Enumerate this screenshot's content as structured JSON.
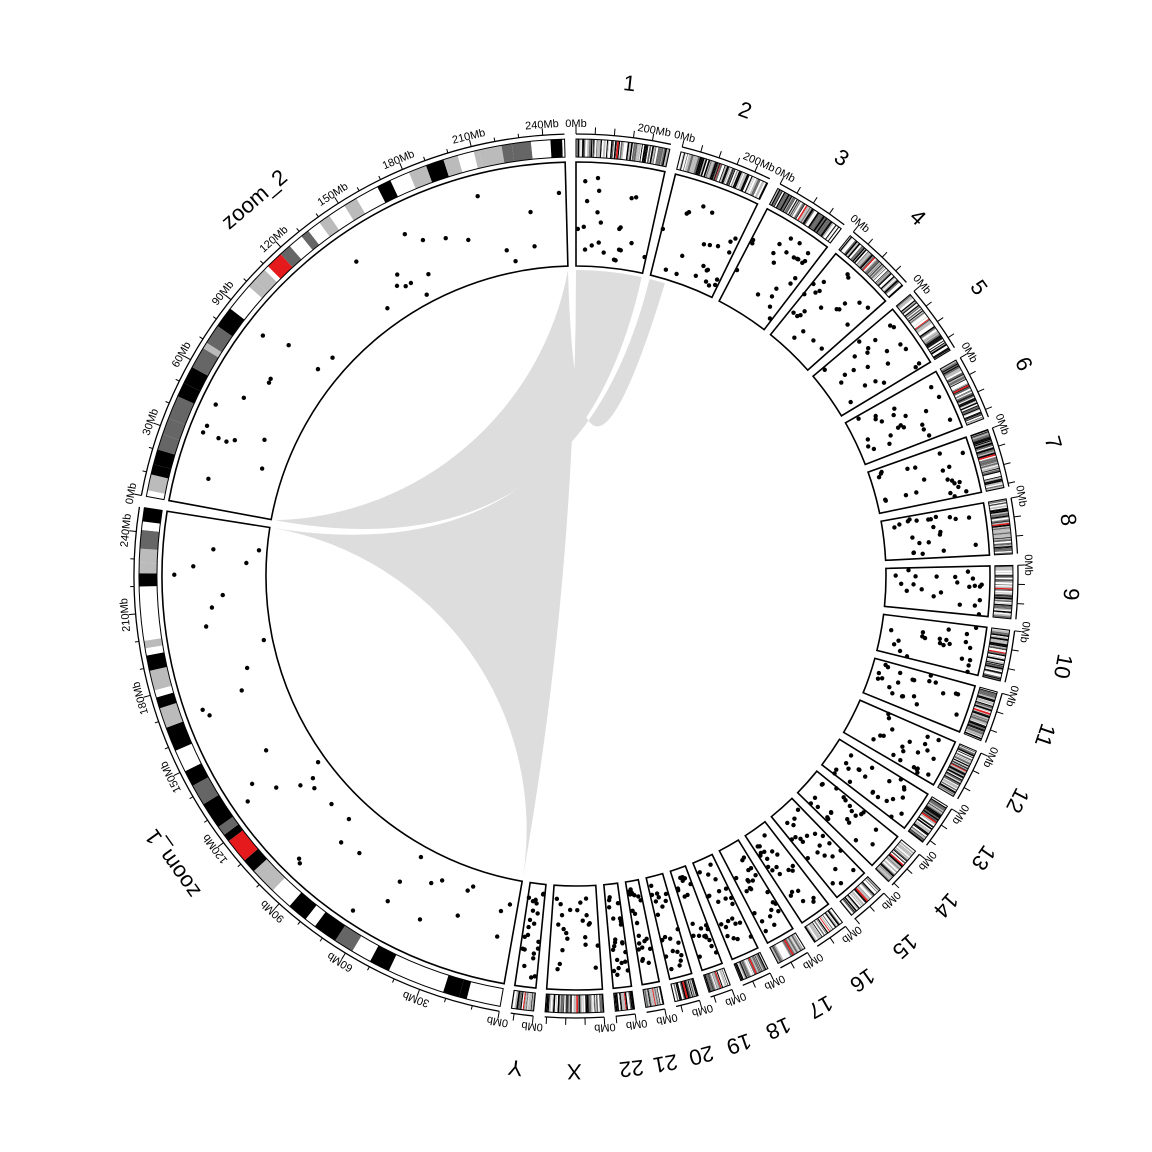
{
  "colors": {
    "background": "#ffffff",
    "line": "#000000",
    "link": "#dddddd",
    "band_dark": "#000000",
    "band_mid": "#666666",
    "band_light": "#bbbbbb",
    "band_none": "#ffffff",
    "centromere": "#e41a1c"
  },
  "chart_data": {
    "type": "circos",
    "tracks": [
      "axis",
      "ideogram",
      "points"
    ],
    "sectors": [
      {
        "name": "1",
        "len": 249,
        "labels": [
          "0Mb",
          "200Mb"
        ],
        "ticks_every": 50,
        "density": 22
      },
      {
        "name": "2",
        "len": 243,
        "labels": [
          "0Mb",
          "200Mb"
        ],
        "ticks_every": 50,
        "density": 22
      },
      {
        "name": "3",
        "len": 198,
        "labels": [
          "0Mb"
        ],
        "ticks_every": 50,
        "density": 22
      },
      {
        "name": "4",
        "len": 191,
        "labels": [
          "0Mb"
        ],
        "ticks_every": 50,
        "density": 22
      },
      {
        "name": "5",
        "len": 181,
        "labels": [
          "0Mb"
        ],
        "ticks_every": 50,
        "density": 22
      },
      {
        "name": "6",
        "len": 171,
        "labels": [
          "0Mb"
        ],
        "ticks_every": 50,
        "density": 22
      },
      {
        "name": "7",
        "len": 159,
        "labels": [
          "0Mb"
        ],
        "ticks_every": 50,
        "density": 22
      },
      {
        "name": "8",
        "len": 146,
        "labels": [
          "0Mb"
        ],
        "ticks_every": 50,
        "density": 22
      },
      {
        "name": "9",
        "len": 141,
        "labels": [
          "0Mb"
        ],
        "ticks_every": 50,
        "density": 22
      },
      {
        "name": "10",
        "len": 136,
        "labels": [
          "0Mb"
        ],
        "ticks_every": 50,
        "density": 22
      },
      {
        "name": "11",
        "len": 135,
        "labels": [
          "0Mb"
        ],
        "ticks_every": 50,
        "density": 22
      },
      {
        "name": "12",
        "len": 134,
        "labels": [
          "0Mb"
        ],
        "ticks_every": 50,
        "density": 22
      },
      {
        "name": "13",
        "len": 115,
        "labels": [
          "0Mb"
        ],
        "ticks_every": 50,
        "density": 22
      },
      {
        "name": "14",
        "len": 107,
        "labels": [
          "0Mb"
        ],
        "ticks_every": 50,
        "density": 22
      },
      {
        "name": "15",
        "len": 102,
        "labels": [
          "0Mb"
        ],
        "ticks_every": 50,
        "density": 22
      },
      {
        "name": "16",
        "len": 90,
        "labels": [
          "0Mb"
        ],
        "ticks_every": 50,
        "density": 22
      },
      {
        "name": "17",
        "len": 81,
        "labels": [
          "0Mb"
        ],
        "ticks_every": 50,
        "density": 22
      },
      {
        "name": "18",
        "len": 78,
        "labels": [
          "0Mb"
        ],
        "ticks_every": 50,
        "density": 22
      },
      {
        "name": "19",
        "len": 59,
        "labels": [
          "0Mb"
        ],
        "ticks_every": 50,
        "density": 22
      },
      {
        "name": "20",
        "len": 63,
        "labels": [
          "0Mb"
        ],
        "ticks_every": 50,
        "density": 22
      },
      {
        "name": "21",
        "len": 48,
        "labels": [
          "0Mb"
        ],
        "ticks_every": 50,
        "density": 22
      },
      {
        "name": "22",
        "len": 51,
        "labels": [
          "0Mb"
        ],
        "ticks_every": 50,
        "density": 22
      },
      {
        "name": "X",
        "len": 155,
        "labels": [
          "0Mb"
        ],
        "ticks_every": 50,
        "density": 22
      },
      {
        "name": "Y",
        "len": 59,
        "labels": [
          "0Mb"
        ],
        "ticks_every": 50,
        "density": 22
      },
      {
        "name": "zoom_1",
        "len": 249,
        "labels": [
          "0Mb",
          "30Mb",
          "60Mb",
          "90Mb",
          "120Mb",
          "150Mb",
          "180Mb",
          "210Mb",
          "240Mb"
        ],
        "ticks_every": 10,
        "density": 40
      },
      {
        "name": "zoom_2",
        "len": 249,
        "labels": [
          "0Mb",
          "30Mb",
          "60Mb",
          "90Mb",
          "120Mb",
          "150Mb",
          "180Mb",
          "210Mb",
          "240Mb"
        ],
        "ticks_every": 10,
        "density": 34
      }
    ],
    "zoom_links": [
      {
        "from": "1",
        "to": "zoom_1",
        "from_start": 0,
        "from_end": 249
      },
      {
        "from": "2",
        "to": "zoom_2",
        "from_start": 0,
        "from_end": 60
      }
    ]
  }
}
